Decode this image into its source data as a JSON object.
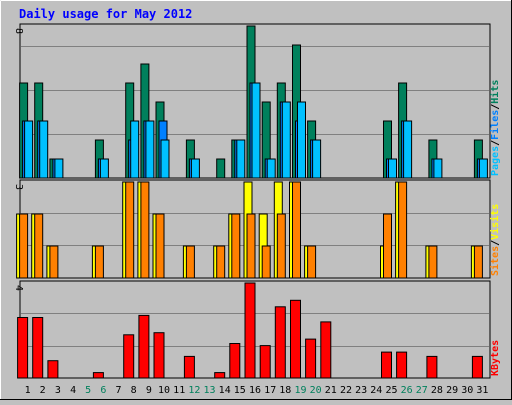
{
  "colors": {
    "background": "#c0c0c0",
    "panel": "#c0c0c0",
    "grid": "#808080",
    "title": "#0000ff",
    "hits": "#00805c",
    "files": "#0080ff",
    "pages": "#00c0ff",
    "visits": "#ffff00",
    "sites": "#ff8000",
    "kbytes": "#ff0000",
    "weekend_label": "#00805c",
    "weekday_label": "#000000"
  },
  "chart_data": {
    "type": "bar",
    "title": "Daily usage for May 2012",
    "days": [
      "1",
      "2",
      "3",
      "4",
      "5",
      "6",
      "7",
      "8",
      "9",
      "10",
      "11",
      "12",
      "13",
      "14",
      "15",
      "16",
      "17",
      "18",
      "19",
      "20",
      "21",
      "22",
      "23",
      "24",
      "25",
      "26",
      "27",
      "28",
      "29",
      "30",
      "31"
    ],
    "weekend_days": [
      "5",
      "6",
      "12",
      "13",
      "19",
      "20",
      "26",
      "27"
    ],
    "grid": true,
    "panels": [
      {
        "id": "hits-files-pages",
        "max_label": "8",
        "ylim": [
          0,
          8
        ],
        "legend": [
          "Pages",
          "/",
          "Files",
          "/",
          "Hits"
        ],
        "series": [
          {
            "name": "Hits",
            "values": [
              5,
              5,
              1,
              0,
              0,
              2,
              0,
              5,
              6,
              4,
              0,
              2,
              0,
              1,
              2,
              8,
              4,
              5,
              7,
              3,
              0,
              0,
              0,
              0,
              3,
              5,
              0,
              2,
              0,
              0,
              2
            ]
          },
          {
            "name": "Files",
            "values": [
              3,
              3,
              1,
              0,
              0,
              1,
              0,
              2,
              3,
              3,
              0,
              1,
              0,
              0,
              2,
              5,
              1,
              4,
              3,
              2,
              0,
              0,
              0,
              0,
              1,
              3,
              0,
              1,
              0,
              0,
              1
            ]
          },
          {
            "name": "Pages",
            "values": [
              3,
              3,
              1,
              0,
              0,
              1,
              0,
              3,
              3,
              2,
              0,
              1,
              0,
              0,
              2,
              5,
              1,
              4,
              4,
              2,
              0,
              0,
              0,
              0,
              1,
              3,
              0,
              1,
              0,
              0,
              1
            ]
          }
        ]
      },
      {
        "id": "visits-sites",
        "max_label": "3",
        "ylim": [
          0,
          3
        ],
        "legend": [
          "Sites",
          "/",
          "Visits"
        ],
        "series": [
          {
            "name": "Visits",
            "values": [
              2,
              2,
              1,
              0,
              0,
              1,
              0,
              3,
              3,
              2,
              0,
              1,
              0,
              1,
              2,
              3,
              2,
              3,
              3,
              1,
              0,
              0,
              0,
              0,
              1,
              3,
              0,
              1,
              0,
              0,
              1
            ]
          },
          {
            "name": "Sites",
            "values": [
              2,
              2,
              1,
              0,
              0,
              1,
              0,
              3,
              3,
              2,
              0,
              1,
              0,
              1,
              2,
              2,
              1,
              2,
              3,
              1,
              0,
              0,
              0,
              0,
              2,
              3,
              0,
              1,
              0,
              0,
              1
            ]
          }
        ]
      },
      {
        "id": "kbytes",
        "max_label": "4",
        "ylim": [
          0,
          4.4
        ],
        "legend": [
          "KBytes"
        ],
        "series": [
          {
            "name": "KBytes",
            "values": [
              2.8,
              2.8,
              0.8,
              0,
              0,
              0.25,
              0,
              2.0,
              2.9,
              2.1,
              0,
              1.0,
              0,
              0.25,
              1.6,
              4.4,
              1.5,
              3.3,
              3.6,
              1.8,
              2.6,
              0,
              0,
              0,
              1.2,
              1.2,
              0,
              1.0,
              0,
              0,
              1.0
            ]
          }
        ]
      }
    ]
  }
}
